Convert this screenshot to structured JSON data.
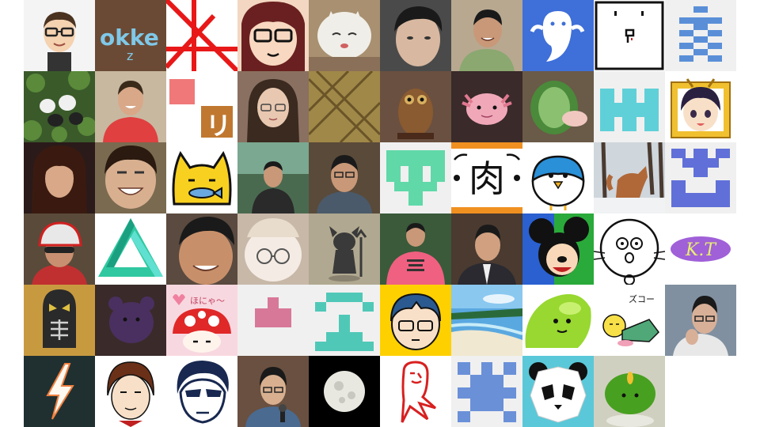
{
  "avatars": [
    {
      "icon": "mii-glasses-man-icon",
      "bg": "#f4f4f4"
    },
    {
      "icon": "okke-logo-icon",
      "bg": "#6b4a35",
      "text": "okke"
    },
    {
      "icon": "red-lines-icon",
      "bg": "#ffffff"
    },
    {
      "icon": "cartoon-glasses-woman-icon",
      "bg": "#f3d7c2"
    },
    {
      "icon": "plush-cat-icon",
      "bg": "#a89070"
    },
    {
      "icon": "man-photo-icon",
      "bg": "#4a4a4a"
    },
    {
      "icon": "smiling-man-photo-icon",
      "bg": "#b8a890"
    },
    {
      "icon": "white-ghost-icon",
      "bg": "#3f6fd8"
    },
    {
      "icon": "minimal-face-icon",
      "bg": "#ffffff"
    },
    {
      "icon": "blue-pixel-pattern-icon",
      "bg": "#f0f0f0"
    },
    {
      "icon": "plush-toys-leaves-icon",
      "bg": "#3a5a2a"
    },
    {
      "icon": "man-red-shirt-photo-icon",
      "bg": "#c8b8a0"
    },
    {
      "icon": "ri-logo-icon",
      "bg": "#ffffff",
      "text": "リ"
    },
    {
      "icon": "woman-glasses-photo-icon",
      "bg": "#8a7060"
    },
    {
      "icon": "tatami-pattern-icon",
      "bg": "#a08848"
    },
    {
      "icon": "owl-figure-icon",
      "bg": "#6a5040"
    },
    {
      "icon": "axolotl-icon",
      "bg": "#3a2a2a"
    },
    {
      "icon": "sushi-plush-icon",
      "bg": "#6a5a48"
    },
    {
      "icon": "cyan-pixel-pattern-icon",
      "bg": "#f0f0f0"
    },
    {
      "icon": "anime-girl-frame-icon",
      "bg": "#ffffff"
    },
    {
      "icon": "long-hair-man-photo-icon",
      "bg": "#2a1a1a"
    },
    {
      "icon": "laughing-man-photo-icon",
      "bg": "#7a6a50"
    },
    {
      "icon": "yellow-cat-fish-icon",
      "bg": "#ffffff"
    },
    {
      "icon": "presenter-photo-icon",
      "bg": "#4a6a50"
    },
    {
      "icon": "man-glasses-photo-icon",
      "bg": "#5a4a3a"
    },
    {
      "icon": "green-pixel-pattern-icon",
      "bg": "#f0f0f0"
    },
    {
      "icon": "niku-kanji-icon",
      "bg": "#ffffff",
      "text": "肉"
    },
    {
      "icon": "blue-bird-icon",
      "bg": "#ffffff"
    },
    {
      "icon": "fox-snow-icon",
      "bg": "#cfd6dc"
    },
    {
      "icon": "purple-pixel-pattern-icon",
      "bg": "#f0f0f0"
    },
    {
      "icon": "cyclist-photo-icon",
      "bg": "#5a4a3a"
    },
    {
      "icon": "impossible-triangle-icon",
      "bg": "#ffffff"
    },
    {
      "icon": "smiling-man-closeup-icon",
      "bg": "#5a4a40"
    },
    {
      "icon": "plush-glasses-icon",
      "bg": "#c8b8a8"
    },
    {
      "icon": "devil-figure-icon",
      "bg": "#b0a890"
    },
    {
      "icon": "man-pink-shirt-photo-icon",
      "bg": "#3a5a3a"
    },
    {
      "icon": "man-suit-photo-icon",
      "bg": "#4a3a30"
    },
    {
      "icon": "mickey-mouse-icon",
      "bg": "#2aaa3a"
    },
    {
      "icon": "face-drawing-icon",
      "bg": "#ffffff"
    },
    {
      "icon": "kt-logo-icon",
      "bg": "#ffffff",
      "text": "K.T"
    },
    {
      "icon": "mask-figure-icon",
      "bg": "#c89a40"
    },
    {
      "icon": "dark-plush-icon",
      "bg": "#3a2a2a"
    },
    {
      "icon": "mushroom-hat-icon",
      "bg": "#f8d8e0",
      "text": "ほにゃ〜"
    },
    {
      "icon": "pink-pixel-pattern-icon",
      "bg": "#f0f0f0"
    },
    {
      "icon": "teal-pixel-pattern-icon",
      "bg": "#f0f0f0"
    },
    {
      "icon": "cartoon-boy-glasses-icon",
      "bg": "#ffd000"
    },
    {
      "icon": "beach-photo-icon",
      "bg": "#5aa8e0"
    },
    {
      "icon": "green-blob-icon",
      "bg": "#ffffff"
    },
    {
      "icon": "sleeping-character-icon",
      "bg": "#ffffff",
      "text": "ズコー"
    },
    {
      "icon": "man-thinking-photo-icon",
      "bg": "#8090a0"
    },
    {
      "icon": "lightning-icon",
      "bg": "#203030"
    },
    {
      "icon": "manga-man-icon",
      "bg": "#ffffff"
    },
    {
      "icon": "manga-sunglasses-man-icon",
      "bg": "#ffffff"
    },
    {
      "icon": "speaker-microphone-photo-icon",
      "bg": "#6a5040"
    },
    {
      "icon": "moon-icon",
      "bg": "#000000"
    },
    {
      "icon": "red-ghost-icon",
      "bg": "#ffffff"
    },
    {
      "icon": "blue-pixel-pattern-2-icon",
      "bg": "#f0f0f0"
    },
    {
      "icon": "panda-icon",
      "bg": "#5ac8d8"
    },
    {
      "icon": "green-ball-plush-icon",
      "bg": "#d0d0c0"
    }
  ]
}
